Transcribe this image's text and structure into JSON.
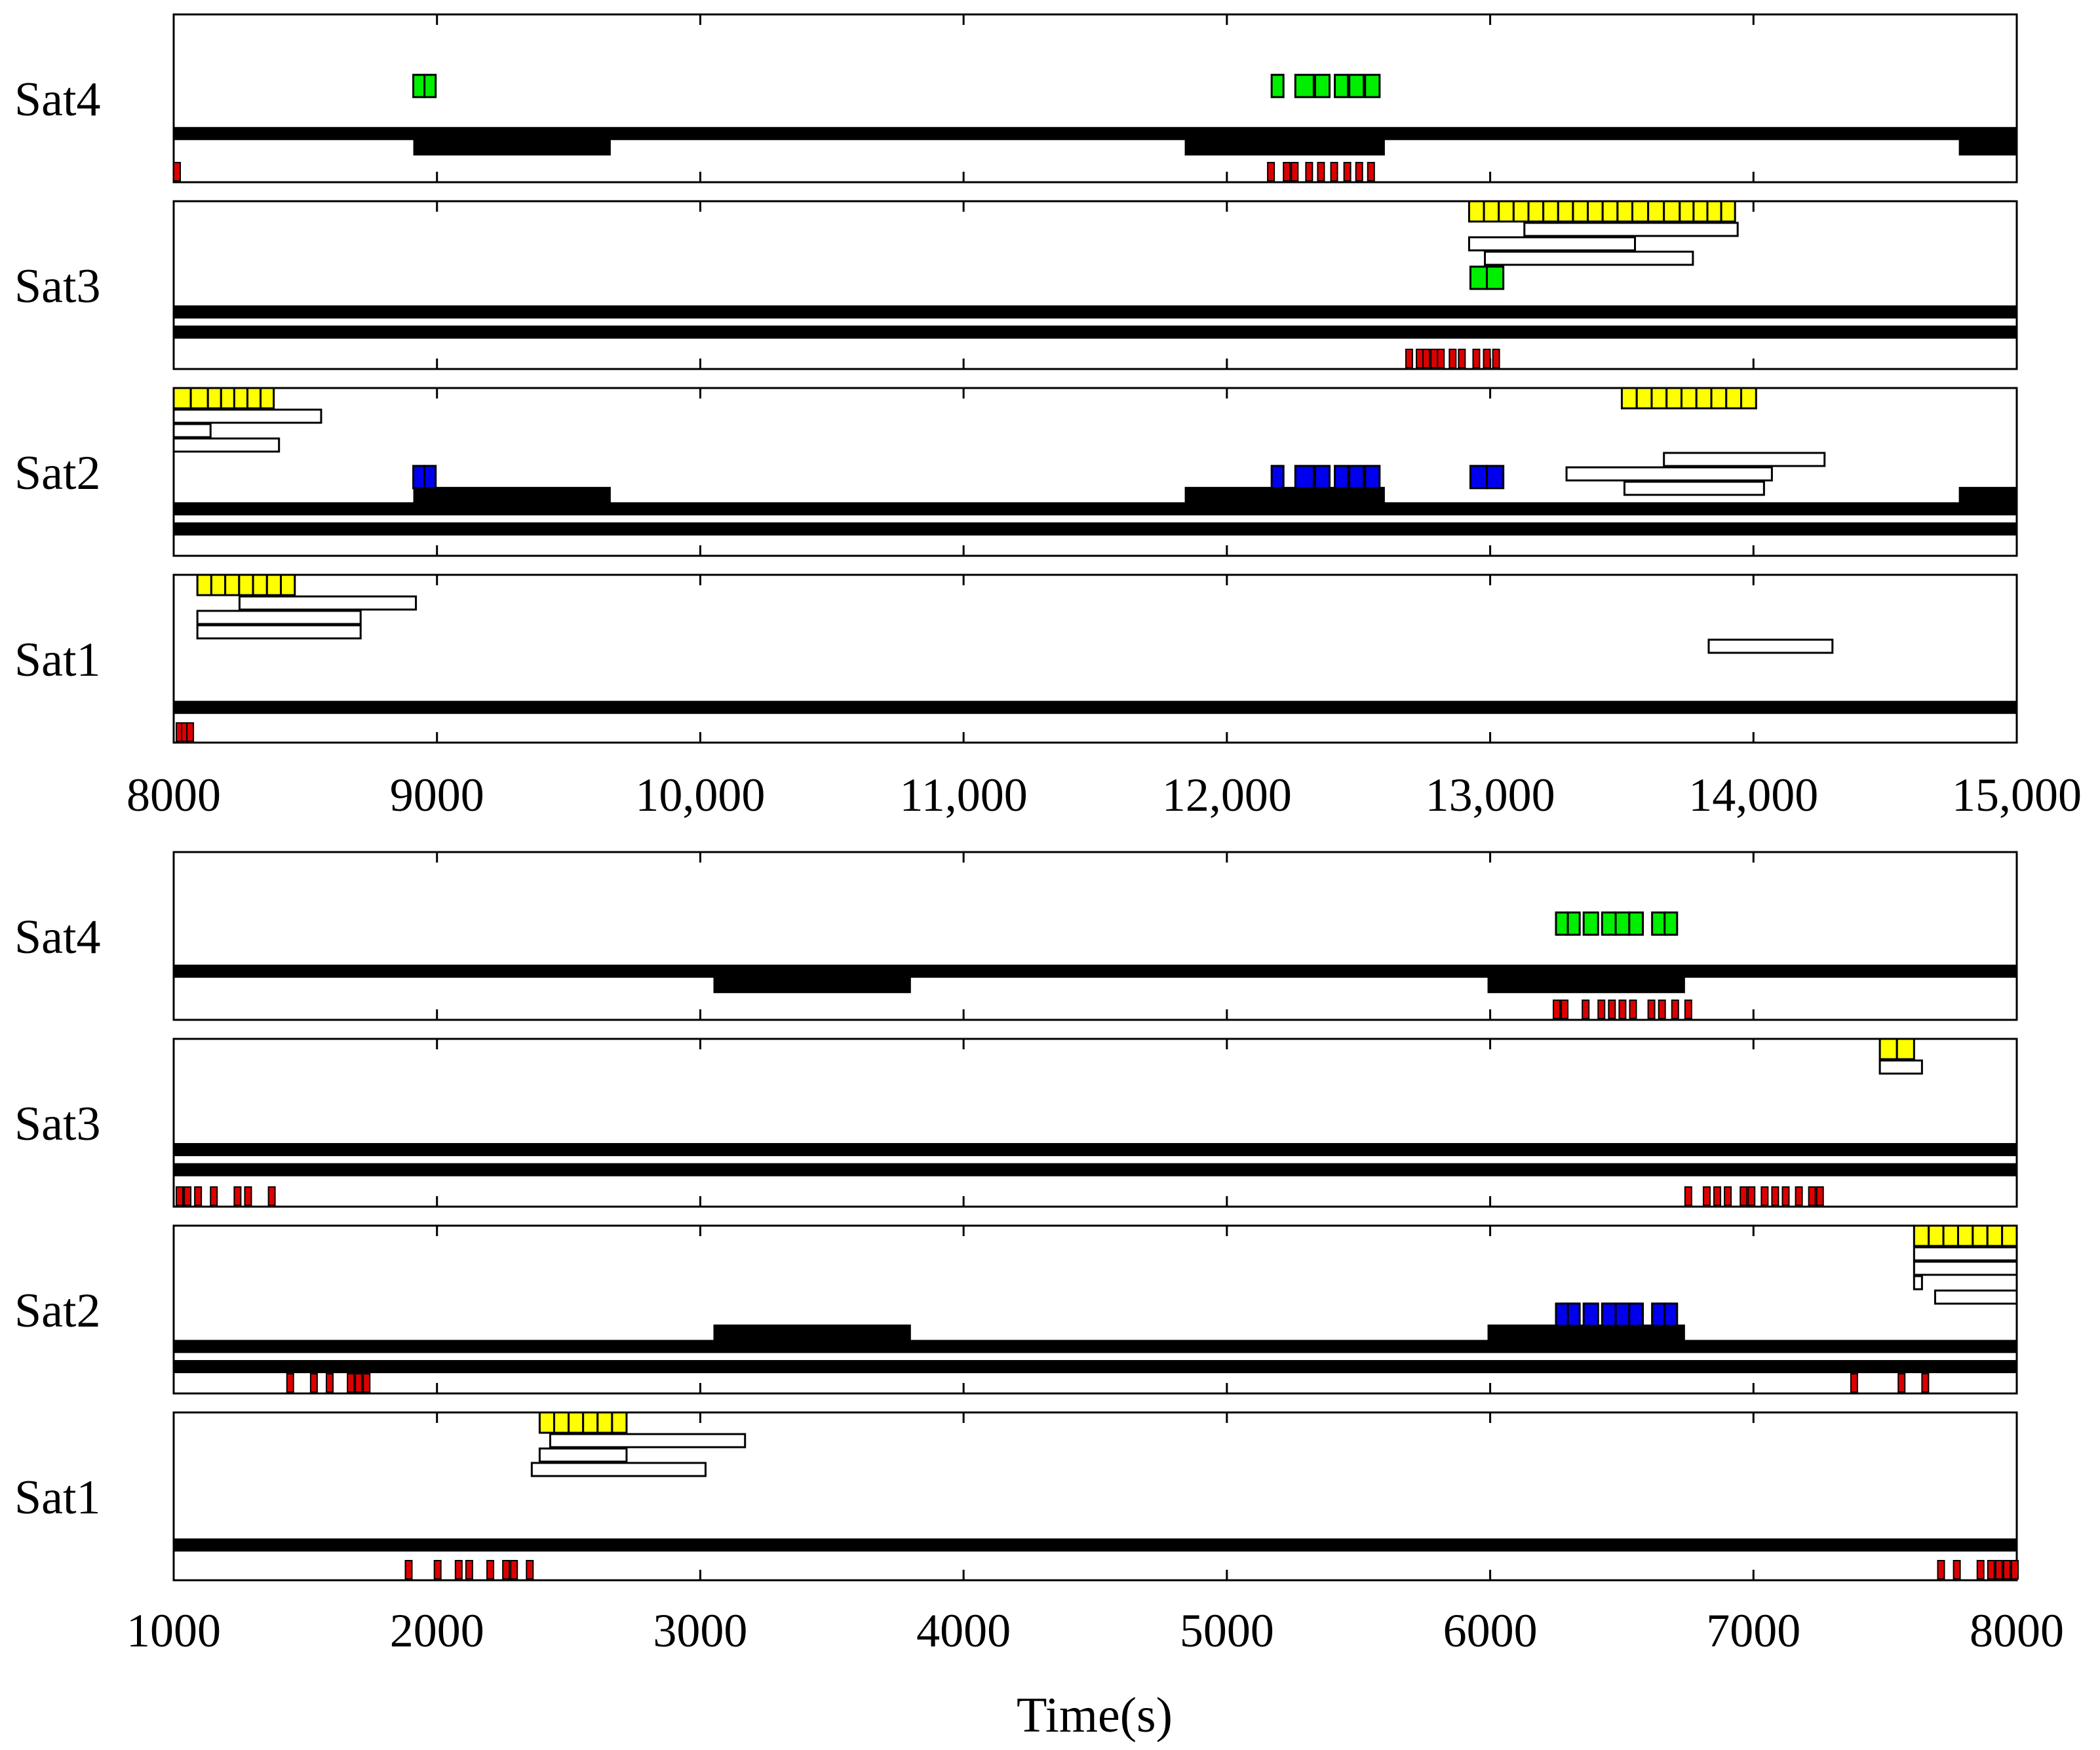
{
  "chart_data": [
    {
      "type": "gantt",
      "panel": "top",
      "xlim": [
        8000,
        15000
      ],
      "xticks": [
        8000,
        9000,
        10000,
        11000,
        12000,
        13000,
        14000,
        15000
      ],
      "xtick_labels": [
        "8000",
        "9000",
        "10,000",
        "11,000",
        "12,000",
        "13,000",
        "14,000",
        "15,000"
      ],
      "xlabel": "",
      "rows": [
        {
          "label": "Sat4",
          "green": [
            [
              8910,
              8995
            ],
            [
              12170,
              12215
            ],
            [
              12260,
              12330
            ],
            [
              12335,
              12390
            ],
            [
              12410,
              12460
            ],
            [
              12465,
              12520
            ],
            [
              12525,
              12580
            ]
          ],
          "blue": [],
          "yellow": [],
          "windows": [],
          "lines": [
            {
              "y": 0.29,
              "segments": [
                [
                  8000,
                  15000
                ]
              ]
            }
          ],
          "thick": [
            {
              "y": 0.21,
              "segments": [
                [
                  8910,
                  9660
                ],
                [
                  11840,
                  12600
                ],
                [
                  14780,
                  15000
                ]
              ]
            }
          ],
          "red": [
            8000,
            12155,
            12215,
            12245,
            12300,
            12345,
            12395,
            12445,
            12490,
            12535
          ]
        },
        {
          "label": "Sat3",
          "green": [
            [
              12925,
              13050
            ]
          ],
          "blue": [],
          "yellow": [
            [
              12920,
              13540
            ],
            [
              13540,
              13720
            ],
            [
              13720,
              13930
            ]
          ],
          "windows": [
            [
              13130,
              13940
            ],
            [
              12920,
              13550
            ],
            [
              12980,
              13770
            ]
          ],
          "lines": [
            {
              "y": 0.34,
              "segments": [
                [
                  8000,
                  15000
                ]
              ]
            },
            {
              "y": 0.22,
              "segments": [
                [
                  8000,
                  15000
                ]
              ]
            }
          ],
          "thick": [],
          "red": [
            12680,
            12720,
            12745,
            12775,
            12800,
            12845,
            12880,
            12935,
            12975,
            13010
          ]
        },
        {
          "label": "Sat2",
          "green": [],
          "blue": [
            [
              8910,
              8995
            ],
            [
              12170,
              12215
            ],
            [
              12260,
              12330
            ],
            [
              12335,
              12390
            ],
            [
              12410,
              12460
            ],
            [
              12465,
              12520
            ],
            [
              12525,
              12580
            ],
            [
              12925,
              13050
            ]
          ],
          "yellow": [
            [
              8000,
              8130
            ],
            [
              8130,
              8380
            ],
            [
              13500,
              14010
            ]
          ],
          "windows": [
            [
              8000,
              8560
            ],
            [
              8000,
              8140
            ],
            [
              8000,
              8400
            ],
            [
              13660,
              14270
            ],
            [
              13290,
              14070
            ],
            [
              13510,
              14040
            ]
          ],
          "lines": [
            {
              "y": 0.28,
              "segments": [
                [
                  8000,
                  15000
                ]
              ]
            },
            {
              "y": 0.16,
              "segments": [
                [
                  8000,
                  15000
                ]
              ]
            }
          ],
          "thick": [
            {
              "y": 0.36,
              "segments": [
                [
                  8910,
                  9660
                ],
                [
                  11840,
                  12600
                ],
                [
                  14780,
                  15000
                ]
              ]
            }
          ],
          "red": []
        },
        {
          "label": "Sat1",
          "green": [],
          "blue": [],
          "yellow": [
            [
              8090,
              8460
            ]
          ],
          "windows": [
            [
              8250,
              8920
            ],
            [
              8090,
              8710
            ],
            [
              8090,
              8710
            ],
            [
              13830,
              14300
            ]
          ],
          "lines": [
            {
              "y": 0.21,
              "segments": [
                [
                  8000,
                  15000
                ]
              ]
            }
          ],
          "thick": [],
          "red": [
            8010,
            8030,
            8050
          ]
        }
      ]
    },
    {
      "type": "gantt",
      "panel": "bottom",
      "xlim": [
        1000,
        8000
      ],
      "xticks": [
        1000,
        2000,
        3000,
        4000,
        5000,
        6000,
        7000,
        8000
      ],
      "xtick_labels": [
        "1000",
        "2000",
        "3000",
        "4000",
        "5000",
        "6000",
        "7000",
        "8000"
      ],
      "xlabel": "Time(s)",
      "rows": [
        {
          "label": "Sat4",
          "green": [
            [
              6250,
              6340
            ],
            [
              6355,
              6410
            ],
            [
              6425,
              6580
            ],
            [
              6615,
              6710
            ]
          ],
          "blue": [],
          "yellow": [],
          "windows": [],
          "lines": [
            {
              "y": 0.29,
              "segments": [
                [
                  1000,
                  8000
                ]
              ]
            }
          ],
          "thick": [
            {
              "y": 0.21,
              "segments": [
                [
                  3050,
                  3800
                ],
                [
                  5990,
                  6740
                ]
              ]
            }
          ],
          "red": [
            6240,
            6270,
            6350,
            6410,
            6450,
            6490,
            6530,
            6600,
            6640,
            6690,
            6740
          ]
        },
        {
          "label": "Sat3",
          "green": [],
          "blue": [],
          "yellow": [
            [
              7480,
              7610
            ]
          ],
          "windows": [
            [
              7480,
              7640
            ]
          ],
          "lines": [
            {
              "y": 0.34,
              "segments": [
                [
                  1000,
                  8000
                ]
              ]
            },
            {
              "y": 0.22,
              "segments": [
                [
                  1000,
                  8000
                ]
              ]
            }
          ],
          "thick": [],
          "red": [
            1010,
            1040,
            1080,
            1140,
            1230,
            1270,
            1360,
            6740,
            6810,
            6850,
            6890,
            6950,
            6980,
            7030,
            7070,
            7110,
            7160,
            7210,
            7240
          ]
        },
        {
          "label": "Sat2",
          "green": [],
          "blue": [
            [
              6250,
              6340
            ],
            [
              6355,
              6410
            ],
            [
              6425,
              6580
            ],
            [
              6615,
              6710
            ]
          ],
          "yellow": [
            [
              7610,
              8000
            ]
          ],
          "windows": [
            [
              7610,
              8000
            ],
            [
              7610,
              8000
            ],
            [
              7610,
              7640
            ],
            [
              7690,
              8000
            ]
          ],
          "lines": [
            {
              "y": 0.28,
              "segments": [
                [
                  1000,
                  8000
                ]
              ]
            },
            {
              "y": 0.16,
              "segments": [
                [
                  1000,
                  8000
                ]
              ]
            }
          ],
          "thick": [
            {
              "y": 0.36,
              "segments": [
                [
                  3050,
                  3800
                ],
                [
                  5990,
                  6740
                ]
              ]
            }
          ],
          "red": [
            1430,
            1520,
            1580,
            1660,
            1690,
            1720,
            7370,
            7550,
            7640
          ]
        },
        {
          "label": "Sat1",
          "green": [],
          "blue": [],
          "yellow": [
            [
              2390,
              2720
            ]
          ],
          "windows": [
            [
              2430,
              3170
            ],
            [
              2390,
              2720
            ],
            [
              2360,
              3020
            ]
          ],
          "lines": [
            {
              "y": 0.21,
              "segments": [
                [
                  1000,
                  8000
                ]
              ]
            }
          ],
          "thick": [],
          "red": [
            1880,
            1990,
            2070,
            2110,
            2190,
            2250,
            2280,
            2340,
            7700,
            7760,
            7850,
            7890,
            7920,
            7950,
            7980
          ]
        }
      ]
    }
  ]
}
